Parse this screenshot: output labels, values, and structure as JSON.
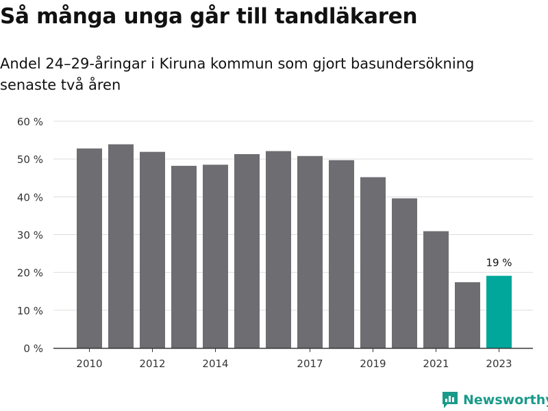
{
  "title": "Så många unga går till tandläkaren",
  "subtitle": "Andel 24–29-åringar i Kiruna kommun som gjort basundersökning senaste två åren",
  "brand": {
    "name": "Newsworthy",
    "color": "#1a9a8a"
  },
  "colors": {
    "bar": "#6e6d72",
    "highlight": "#00a79a",
    "grid": "#dcdcdc",
    "axis": "#333333"
  },
  "chart_data": {
    "type": "bar",
    "categories": [
      "2010",
      "2011",
      "2012",
      "2013",
      "2014",
      "2015",
      "2016",
      "2017",
      "2018",
      "2019",
      "2020",
      "2021",
      "2022",
      "2023"
    ],
    "values": [
      52.8,
      53.9,
      51.9,
      48.2,
      48.5,
      51.3,
      52.1,
      50.8,
      49.7,
      45.2,
      39.6,
      30.9,
      17.4,
      19.1
    ],
    "x_tick_labels": [
      "2010",
      "",
      "2012",
      "",
      "2014",
      "",
      "",
      "2017",
      "",
      "2019",
      "",
      "2021",
      "",
      "2023"
    ],
    "ylim": [
      0,
      60
    ],
    "yticks": [
      0,
      10,
      20,
      30,
      40,
      50,
      60
    ],
    "ytick_labels": [
      "0 %",
      "10 %",
      "20 %",
      "30 %",
      "40 %",
      "50 %",
      "60 %"
    ],
    "highlight_index": 13,
    "data_labels": [
      {
        "index": 13,
        "text": "19 %"
      }
    ],
    "grid": true
  }
}
